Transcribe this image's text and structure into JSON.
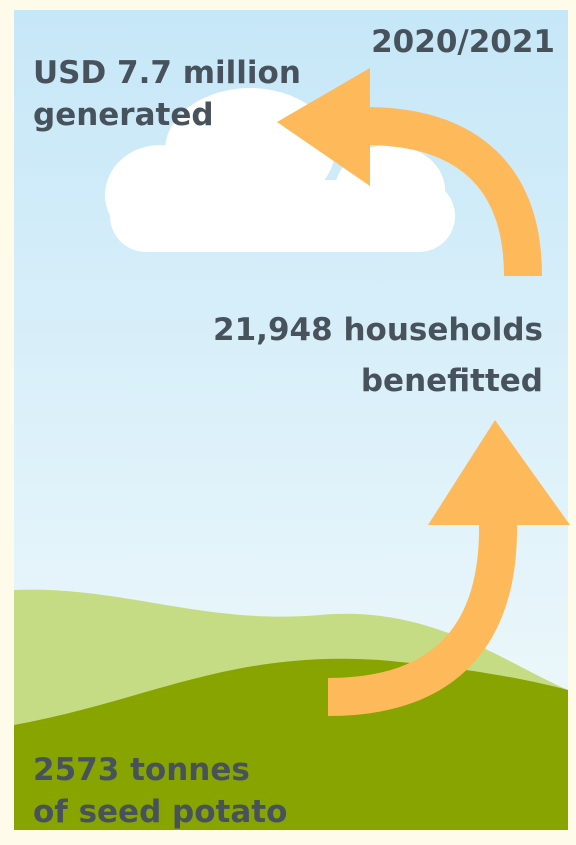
{
  "year": "2020/2021",
  "top": {
    "lines": [
      "USD 7.7 million",
      "generated"
    ]
  },
  "middle": {
    "lines": [
      "21,948 households",
      "benefitted"
    ]
  },
  "bottom": {
    "lines": [
      "2573 tonnes",
      "of seed potato"
    ]
  }
}
